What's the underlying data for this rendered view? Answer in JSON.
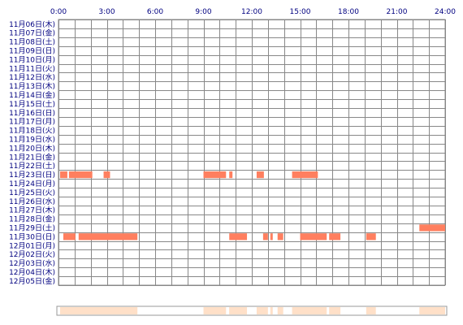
{
  "chart_data": {
    "type": "timeline",
    "title": "",
    "xlabel": "",
    "ylabel": "",
    "x_range_hours": [
      0,
      24
    ],
    "x_tick_hours": [
      0,
      3,
      6,
      9,
      12,
      15,
      18,
      21,
      24
    ],
    "x_tick_labels": [
      "0:00",
      "3:00",
      "6:00",
      "9:00",
      "12:00",
      "15:00",
      "18:00",
      "21:00",
      "24:00"
    ],
    "grid": true,
    "grid_color": "#888888",
    "bar_color": "#FF7F5F",
    "overview_color": "#FFE0C8",
    "overview_outline": "#999999",
    "rows": [
      {
        "label": "11月06日(木)",
        "segments": []
      },
      {
        "label": "11月07日(金)",
        "segments": []
      },
      {
        "label": "11月08日(土)",
        "segments": []
      },
      {
        "label": "11月09日(日)",
        "segments": []
      },
      {
        "label": "11月10日(月)",
        "segments": []
      },
      {
        "label": "11月11日(火)",
        "segments": []
      },
      {
        "label": "11月12日(水)",
        "segments": []
      },
      {
        "label": "11月13日(木)",
        "segments": []
      },
      {
        "label": "11月14日(金)",
        "segments": []
      },
      {
        "label": "11月15日(土)",
        "segments": []
      },
      {
        "label": "11月16日(日)",
        "segments": []
      },
      {
        "label": "11月17日(月)",
        "segments": []
      },
      {
        "label": "11月18日(火)",
        "segments": []
      },
      {
        "label": "11月19日(水)",
        "segments": []
      },
      {
        "label": "11月20日(木)",
        "segments": []
      },
      {
        "label": "11月21日(金)",
        "segments": []
      },
      {
        "label": "11月22日(土)",
        "segments": []
      },
      {
        "label": "11月23日(日)",
        "segments": [
          [
            0.1,
            0.55
          ],
          [
            0.65,
            2.1
          ],
          [
            2.8,
            3.2
          ],
          [
            9.0,
            10.4
          ],
          [
            10.6,
            10.8
          ],
          [
            12.3,
            12.75
          ],
          [
            14.5,
            16.1
          ]
        ]
      },
      {
        "label": "11月24日(月)",
        "segments": []
      },
      {
        "label": "11月25日(火)",
        "segments": []
      },
      {
        "label": "11月26日(水)",
        "segments": []
      },
      {
        "label": "11月27日(木)",
        "segments": []
      },
      {
        "label": "11月28日(金)",
        "segments": []
      },
      {
        "label": "11月29日(土)",
        "segments": [
          [
            22.4,
            24.0
          ]
        ]
      },
      {
        "label": "11月30日(日)",
        "segments": [
          [
            0.3,
            1.05
          ],
          [
            1.25,
            4.9
          ],
          [
            10.6,
            11.7
          ],
          [
            12.7,
            13.0
          ],
          [
            13.15,
            13.3
          ],
          [
            13.6,
            13.95
          ],
          [
            15.0,
            16.65
          ],
          [
            16.8,
            17.5
          ],
          [
            19.1,
            19.7
          ]
        ]
      },
      {
        "label": "12月01日(月)",
        "segments": []
      },
      {
        "label": "12月02日(火)",
        "segments": []
      },
      {
        "label": "12月03日(水)",
        "segments": []
      },
      {
        "label": "12月04日(木)",
        "segments": []
      },
      {
        "label": "12月05日(金)",
        "segments": []
      }
    ]
  }
}
